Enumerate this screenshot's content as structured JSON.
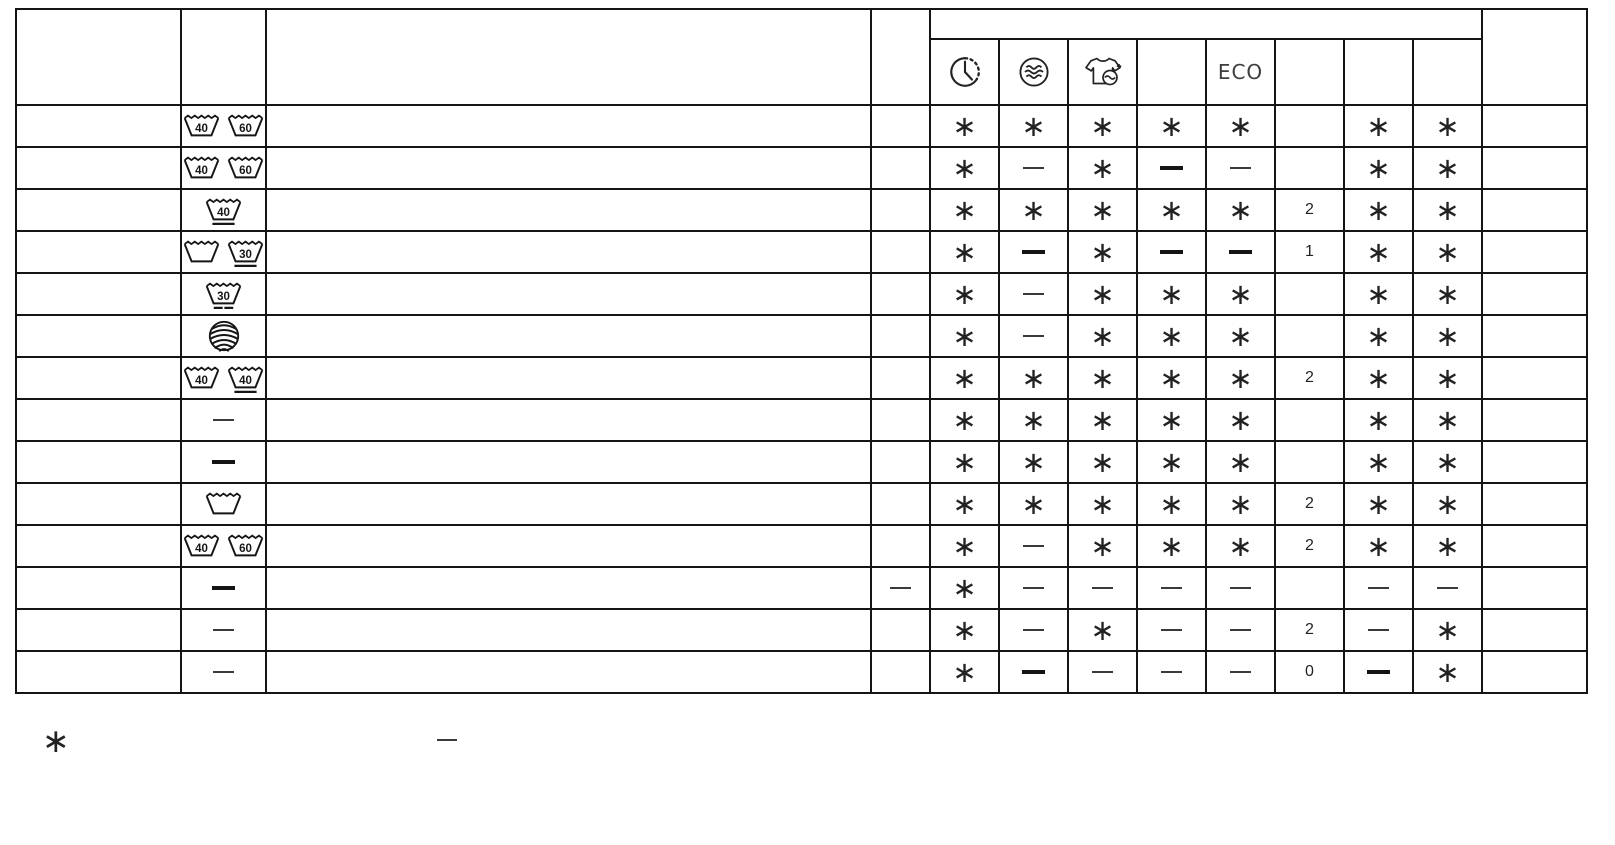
{
  "table": {
    "header": {
      "program_col": "",
      "care_col": "",
      "description_col": "",
      "detergent_col": "",
      "options_group_label": "",
      "option_columns": [
        {
          "icon": "clock-icon",
          "label": ""
        },
        {
          "icon": "soak-icon",
          "label": ""
        },
        {
          "icon": "shirt-extra-rinse-icon",
          "label": ""
        },
        {
          "icon": "none",
          "label": ""
        },
        {
          "icon": "eco-label",
          "label": "ECO"
        },
        {
          "icon": "none",
          "label": ""
        },
        {
          "icon": "none",
          "label": ""
        },
        {
          "icon": "none",
          "label": ""
        }
      ],
      "last_col": ""
    },
    "rows": [
      {
        "program": "",
        "care": [
          "wash-40",
          "wash-60"
        ],
        "pre": "",
        "options": [
          "star",
          "star",
          "star",
          "star",
          "star",
          "",
          "star",
          "star"
        ],
        "last": ""
      },
      {
        "program": "",
        "care": [
          "wash-40",
          "wash-60"
        ],
        "pre": "",
        "options": [
          "star",
          "dash",
          "star",
          "dash-bold",
          "dash",
          "",
          "star",
          "star"
        ],
        "last": ""
      },
      {
        "program": "",
        "care": [
          "wash-40-mild"
        ],
        "pre": "",
        "options": [
          "star",
          "star",
          "star",
          "star",
          "star",
          "2",
          "star",
          "star"
        ],
        "last": ""
      },
      {
        "program": "",
        "care": [
          "wash-empty",
          "wash-30-mild"
        ],
        "pre": "",
        "options": [
          "star",
          "dash-bold",
          "star",
          "dash-bold",
          "dash-bold",
          "1",
          "star",
          "star"
        ],
        "last": ""
      },
      {
        "program": "",
        "care": [
          "wash-30-verymild"
        ],
        "pre": "",
        "options": [
          "star",
          "dash",
          "star",
          "star",
          "star",
          "",
          "star",
          "star"
        ],
        "last": ""
      },
      {
        "program": "",
        "care": [
          "wool"
        ],
        "pre": "",
        "options": [
          "star",
          "dash",
          "star",
          "star",
          "star",
          "",
          "star",
          "star"
        ],
        "last": ""
      },
      {
        "program": "",
        "care": [
          "wash-40",
          "wash-40-mild"
        ],
        "pre": "",
        "options": [
          "star",
          "star",
          "star",
          "star",
          "star",
          "2",
          "star",
          "star"
        ],
        "last": ""
      },
      {
        "program": "",
        "care": [
          "dash"
        ],
        "pre": "",
        "options": [
          "star",
          "star",
          "star",
          "star",
          "star",
          "",
          "star",
          "star"
        ],
        "last": ""
      },
      {
        "program": "",
        "care": [
          "dash-bold"
        ],
        "pre": "",
        "options": [
          "star",
          "star",
          "star",
          "star",
          "star",
          "",
          "star",
          "star"
        ],
        "last": ""
      },
      {
        "program": "",
        "care": [
          "wash-empty"
        ],
        "pre": "",
        "options": [
          "star",
          "star",
          "star",
          "star",
          "star",
          "2",
          "star",
          "star"
        ],
        "last": ""
      },
      {
        "program": "",
        "care": [
          "wash-40",
          "wash-60"
        ],
        "pre": "",
        "options": [
          "star",
          "dash",
          "star",
          "star",
          "star",
          "2",
          "star",
          "star"
        ],
        "last": ""
      },
      {
        "program": "",
        "care": [
          "dash-bold"
        ],
        "pre": "dash",
        "options": [
          "star",
          "dash",
          "dash",
          "dash",
          "dash",
          "",
          "dash",
          "dash"
        ],
        "last": ""
      },
      {
        "program": "",
        "care": [
          "dash"
        ],
        "pre": "",
        "options": [
          "star",
          "dash",
          "star",
          "dash",
          "dash",
          "2",
          "dash",
          "star"
        ],
        "last": ""
      },
      {
        "program": "",
        "care": [
          "dash"
        ],
        "pre": "",
        "options": [
          "star",
          "dash-bold",
          "dash",
          "dash",
          "dash",
          "0",
          "dash-bold",
          "star"
        ],
        "last": ""
      }
    ]
  },
  "legend": {
    "star": "∗",
    "star_text": "",
    "dash": "—",
    "dash_text": ""
  },
  "symbols": {
    "star": "∗"
  },
  "colors": {
    "line": "#151515",
    "text": "#1a1a1a"
  }
}
